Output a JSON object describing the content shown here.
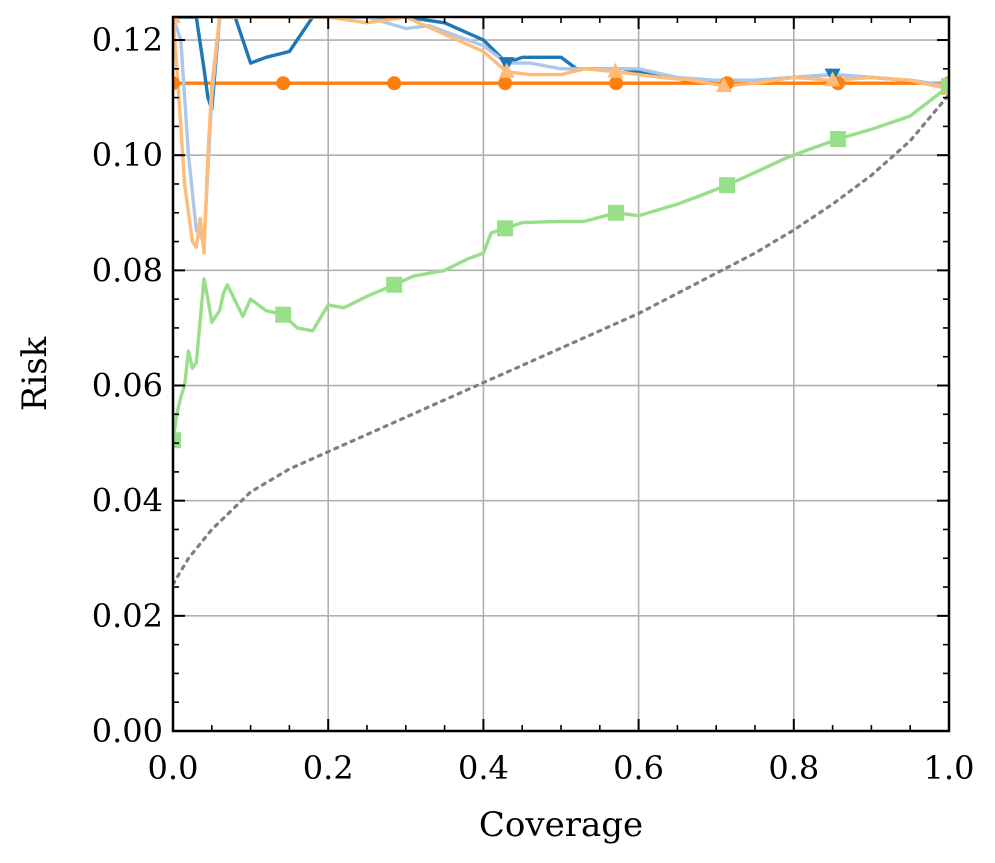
{
  "chart_data": {
    "type": "line",
    "xlabel": "Coverage",
    "ylabel": "Risk",
    "xlim": [
      0,
      1
    ],
    "ylim": [
      0,
      0.124
    ],
    "x_ticks": [
      0,
      0.2,
      0.4,
      0.6,
      0.8,
      1.0
    ],
    "x_tick_labels": [
      "0.0",
      "0.2",
      "0.4",
      "0.6",
      "0.8",
      "1.0"
    ],
    "y_ticks": [
      0,
      0.02,
      0.04,
      0.06,
      0.08,
      0.1,
      0.12
    ],
    "y_tick_labels": [
      "0.00",
      "0.02",
      "0.04",
      "0.06",
      "0.08",
      "0.10",
      "0.12"
    ],
    "grid": true,
    "legend": "none",
    "series": [
      {
        "color": "#ff7f0e",
        "marker": "circle",
        "style": "solid",
        "x": [
          0.0,
          0.142,
          0.285,
          0.428,
          0.571,
          0.714,
          0.857,
          1.0
        ],
        "y": [
          0.1125,
          0.1125,
          0.1125,
          0.1125,
          0.1125,
          0.1125,
          0.1125,
          0.1125
        ]
      },
      {
        "color": "#1f77b4",
        "marker": "triangle-down",
        "style": "solid",
        "x": [
          0.0,
          0.005,
          0.01,
          0.02,
          0.03,
          0.04,
          0.045,
          0.05,
          0.06,
          0.08,
          0.1,
          0.12,
          0.15,
          0.18,
          0.2,
          0.25,
          0.3,
          0.35,
          0.4,
          0.43,
          0.45,
          0.5,
          0.52,
          0.55,
          0.58,
          0.6,
          0.63,
          0.66,
          0.7,
          0.75,
          0.8,
          0.85,
          0.9,
          0.95,
          1.0
        ],
        "y": [
          0.124,
          0.124,
          0.124,
          0.124,
          0.124,
          0.115,
          0.11,
          0.108,
          0.124,
          0.124,
          0.116,
          0.117,
          0.118,
          0.124,
          0.124,
          0.124,
          0.124,
          0.123,
          0.12,
          0.116,
          0.117,
          0.117,
          0.115,
          0.115,
          0.115,
          0.1145,
          0.114,
          0.113,
          0.113,
          0.113,
          0.1135,
          0.114,
          0.1135,
          0.113,
          0.112
        ]
      },
      {
        "color": "#aec7e8",
        "marker": "none",
        "style": "solid",
        "x": [
          0.0,
          0.01,
          0.02,
          0.03,
          0.04,
          0.05,
          0.06,
          0.08,
          0.1,
          0.15,
          0.2,
          0.25,
          0.3,
          0.33,
          0.36,
          0.4,
          0.43,
          0.46,
          0.5,
          0.55,
          0.6,
          0.65,
          0.7,
          0.75,
          0.8,
          0.85,
          0.9,
          0.95,
          1.0
        ],
        "y": [
          0.124,
          0.12,
          0.1,
          0.087,
          0.085,
          0.11,
          0.124,
          0.124,
          0.124,
          0.124,
          0.124,
          0.124,
          0.122,
          0.1225,
          0.121,
          0.119,
          0.116,
          0.116,
          0.115,
          0.115,
          0.115,
          0.1135,
          0.113,
          0.113,
          0.1135,
          0.114,
          0.1135,
          0.113,
          0.112
        ]
      },
      {
        "color": "#ffbb78",
        "marker": "triangle-up",
        "style": "solid",
        "x": [
          0.0,
          0.005,
          0.01,
          0.015,
          0.02,
          0.025,
          0.03,
          0.035,
          0.04,
          0.045,
          0.05,
          0.06,
          0.08,
          0.1,
          0.15,
          0.2,
          0.25,
          0.3,
          0.35,
          0.4,
          0.43,
          0.46,
          0.5,
          0.53,
          0.57,
          0.6,
          0.63,
          0.67,
          0.71,
          0.75,
          0.8,
          0.85,
          0.9,
          0.95,
          1.0
        ],
        "y": [
          0.124,
          0.115,
          0.105,
          0.095,
          0.09,
          0.085,
          0.084,
          0.089,
          0.083,
          0.1,
          0.112,
          0.124,
          0.124,
          0.124,
          0.124,
          0.124,
          0.123,
          0.124,
          0.121,
          0.118,
          0.1145,
          0.114,
          0.114,
          0.115,
          0.1145,
          0.114,
          0.1135,
          0.113,
          0.112,
          0.1125,
          0.1135,
          0.113,
          0.1135,
          0.113,
          0.1115
        ]
      },
      {
        "color": "#98df8a",
        "marker": "square",
        "style": "solid",
        "x": [
          0.0,
          0.005,
          0.01,
          0.015,
          0.02,
          0.025,
          0.03,
          0.04,
          0.045,
          0.05,
          0.06,
          0.065,
          0.07,
          0.09,
          0.1,
          0.12,
          0.142,
          0.16,
          0.18,
          0.2,
          0.22,
          0.25,
          0.285,
          0.31,
          0.35,
          0.38,
          0.4,
          0.41,
          0.428,
          0.45,
          0.5,
          0.53,
          0.571,
          0.6,
          0.65,
          0.68,
          0.714,
          0.75,
          0.79,
          0.82,
          0.857,
          0.9,
          0.95,
          1.0
        ],
        "y": [
          0.0505,
          0.055,
          0.058,
          0.06,
          0.066,
          0.063,
          0.064,
          0.0785,
          0.075,
          0.071,
          0.073,
          0.076,
          0.0775,
          0.072,
          0.075,
          0.073,
          0.0723,
          0.07,
          0.0695,
          0.074,
          0.0735,
          0.0755,
          0.0775,
          0.079,
          0.08,
          0.082,
          0.083,
          0.0865,
          0.0873,
          0.0883,
          0.0885,
          0.0885,
          0.09,
          0.0895,
          0.0915,
          0.093,
          0.0948,
          0.097,
          0.0995,
          0.101,
          0.1028,
          0.1045,
          0.1068,
          0.112
        ]
      },
      {
        "color": "#7f7f7f",
        "marker": "none",
        "style": "dotted",
        "x": [
          0.0,
          0.02,
          0.05,
          0.1,
          0.15,
          0.2,
          0.25,
          0.3,
          0.35,
          0.4,
          0.45,
          0.5,
          0.55,
          0.6,
          0.65,
          0.7,
          0.75,
          0.8,
          0.85,
          0.9,
          0.95,
          1.0
        ],
        "y": [
          0.0255,
          0.03,
          0.035,
          0.0415,
          0.0455,
          0.0485,
          0.0515,
          0.0545,
          0.0575,
          0.0605,
          0.0635,
          0.0665,
          0.0695,
          0.0725,
          0.076,
          0.0795,
          0.083,
          0.087,
          0.0915,
          0.0965,
          0.1025,
          0.1105
        ]
      }
    ]
  }
}
